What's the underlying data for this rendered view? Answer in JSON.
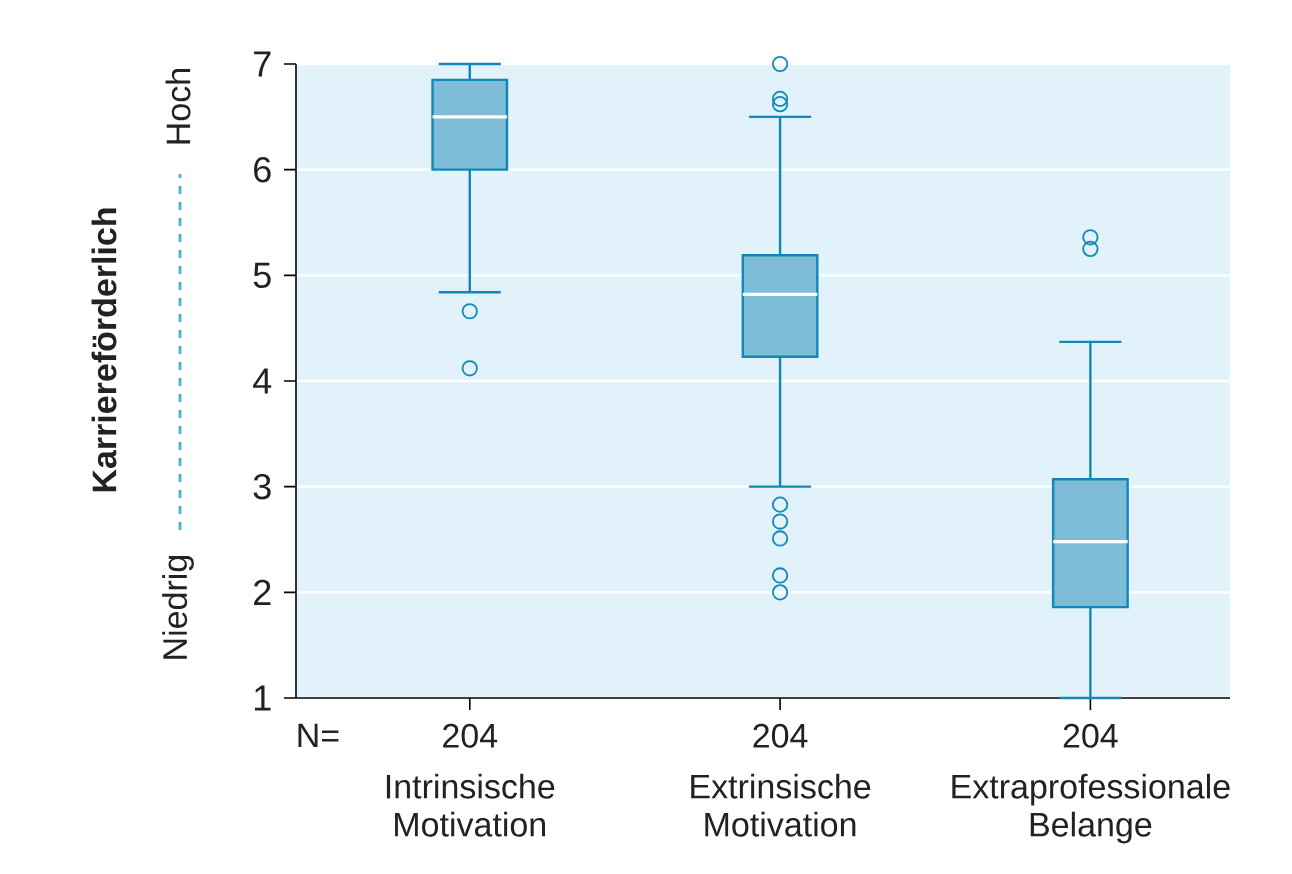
{
  "chart_data": {
    "type": "box",
    "ylabel": "Karriereförderlich",
    "categories": [
      "Intrinsische Motivation",
      "Extrinsische Motivation",
      "Extraprofessionale Belange"
    ],
    "series": [
      {
        "color": "#1287b8",
        "boxes": [
          {
            "low": 4.84,
            "q1": 6.0,
            "median": 6.5,
            "q3": 6.85,
            "high": 7.0,
            "outliers": [
              4.66,
              4.12
            ]
          },
          {
            "low": 3.0,
            "q1": 4.23,
            "median": 4.82,
            "q3": 5.19,
            "high": 6.5,
            "outliers": [
              7.0,
              6.67,
              6.62,
              2.83,
              2.67,
              2.51,
              2.16,
              2.0
            ]
          },
          {
            "low": 1.0,
            "q1": 1.86,
            "median": 2.48,
            "q3": 3.07,
            "high": 4.37,
            "outliers": [
              5.36,
              5.25
            ]
          }
        ]
      }
    ],
    "ylim": [
      1,
      7
    ],
    "yticks": [
      1,
      2,
      3,
      4,
      5,
      6,
      7
    ],
    "grid": "y",
    "marker": "circle",
    "annotations": [
      "Niedrig",
      "Hoch",
      "N=",
      "204",
      "204",
      "204"
    ]
  }
}
